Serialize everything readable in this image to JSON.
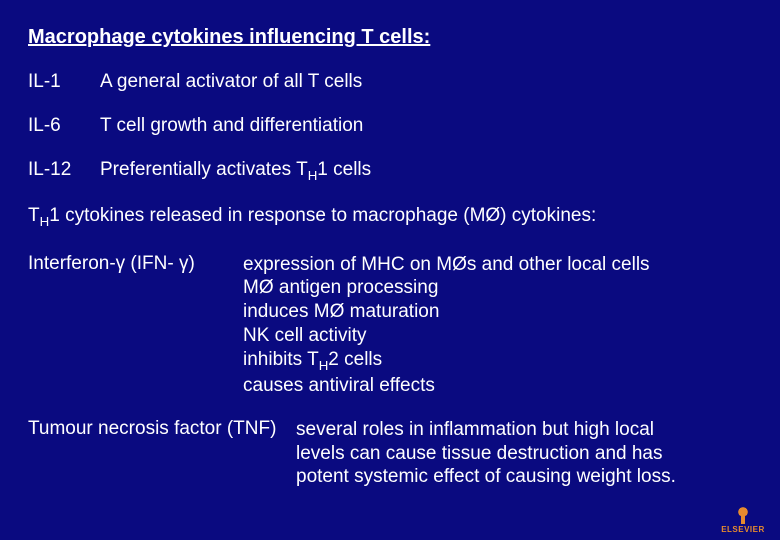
{
  "colors": {
    "background": "#0a0a80",
    "text": "#ffffff",
    "logo": "#e68a2e"
  },
  "typography": {
    "font_family": "Arial, Helvetica, sans-serif",
    "heading_fontsize_pt": 15,
    "body_fontsize_pt": 14
  },
  "heading1": "Macrophage cytokines influencing T cells:",
  "section1": {
    "rows": [
      {
        "label": "IL-1",
        "desc": "A general activator of all T cells"
      },
      {
        "label": "IL-6",
        "desc": "T cell growth and differentiation"
      },
      {
        "label": "IL-12",
        "desc_html": "Preferentially activates T<sub>H</sub>1 cells"
      }
    ]
  },
  "heading2_html": "T<sub>H</sub>1 cytokines released in response to macrophage (MØ) cytokines:",
  "section2": {
    "ifn": {
      "label": "Interferon-γ (IFN- γ)",
      "lines_html": "expression of MHC on MØs and other local cells<br>MØ antigen processing<br>induces MØ maturation<br>NK cell activity<br>inhibits T<sub>H</sub>2 cells<br>causes antiviral effects"
    },
    "tnf": {
      "label": "Tumour necrosis factor (TNF)",
      "lines": "several roles in inflammation but high local\nlevels can cause tissue destruction and has\npotent systemic effect of causing weight loss."
    }
  },
  "logo_text": "ELSEVIER"
}
